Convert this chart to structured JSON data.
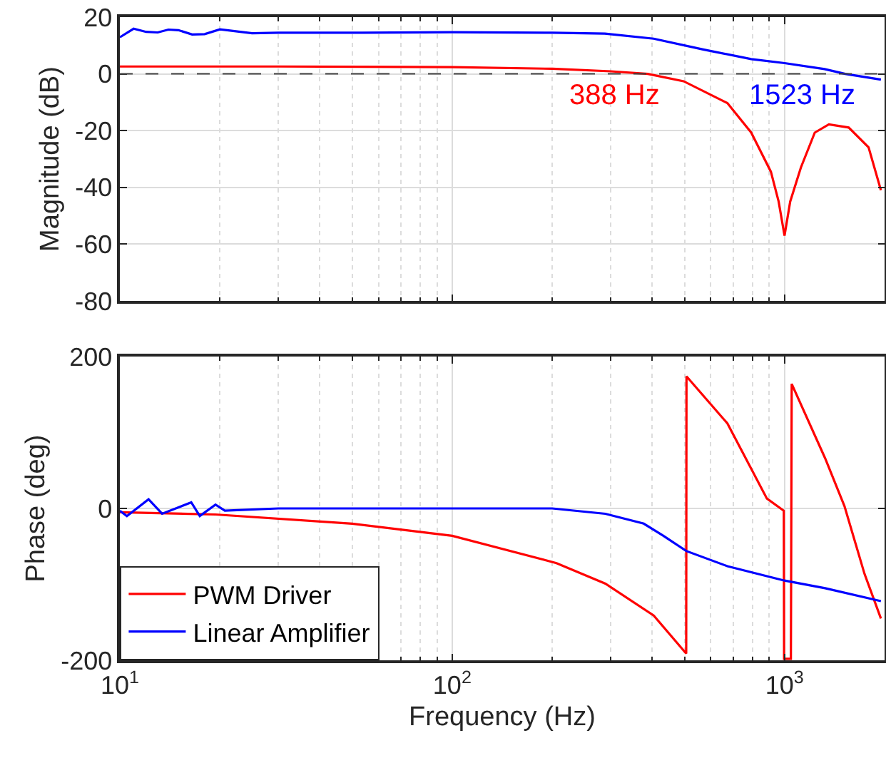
{
  "chart_data": [
    {
      "type": "line",
      "ylabel": "Magnitude (dB)",
      "xlim": [
        10,
        2000
      ],
      "ylim": [
        -80,
        20
      ],
      "log": "x",
      "grid": true,
      "legend": false,
      "tick_labels": "y",
      "line_style": "solid",
      "marker": "none",
      "xticks": [
        {
          "value": 10,
          "label": null
        },
        {
          "value": 100,
          "label": null
        },
        {
          "value": 1000,
          "label": null
        }
      ],
      "yticks": [
        -80,
        -60,
        -40,
        -20,
        0,
        20
      ],
      "ref_lines": [
        {
          "axis": "y",
          "value": 0,
          "label": null,
          "color": "#404040",
          "line_style": "dashed"
        }
      ],
      "annotations": [
        {
          "text": "388 Hz",
          "x": 388,
          "y": 0
        },
        {
          "text": "1523 Hz",
          "x": 1523,
          "y": 0
        }
      ],
      "series": [
        {
          "color": "#ff0000",
          "x": [
            10,
            30,
            100,
            200,
            300,
            388,
            497,
            673,
            794,
            910,
            960,
            1000,
            1040,
            1120,
            1233,
            1360,
            1560,
            1790,
            1950
          ],
          "values": [
            2.6,
            2.6,
            2.4,
            1.8,
            0.9,
            0,
            -2.6,
            -10.3,
            -20.7,
            -34.5,
            -45,
            -57,
            -45,
            -33,
            -20.7,
            -17.8,
            -18.9,
            -25.9,
            -41
          ]
        },
        {
          "color": "#0000ff",
          "x": [
            10,
            11,
            12,
            13,
            14,
            15,
            16.5,
            18,
            20,
            25,
            30,
            50,
            100,
            200,
            288,
            404,
            569,
            794,
            1000,
            1320,
            1523,
            1950
          ],
          "values": [
            12.9,
            15.9,
            14.8,
            14.6,
            15.6,
            15.4,
            13.9,
            14,
            15.7,
            14.3,
            14.5,
            14.5,
            14.7,
            14.5,
            14.2,
            12.4,
            8.6,
            5.2,
            3.8,
            1.7,
            0,
            -2
          ]
        }
      ]
    },
    {
      "type": "line",
      "ylabel": "Phase (deg)",
      "xlabel": "Frequency (Hz)",
      "xlim": [
        10,
        2000
      ],
      "ylim": [
        -200,
        200
      ],
      "log": "x",
      "grid": true,
      "legend": "bottom left",
      "line_style": "solid",
      "marker": "none",
      "xticks": [
        {
          "value": 10,
          "label": "10$^{1}$"
        },
        {
          "value": 100,
          "label": "10$^{2}$"
        },
        {
          "value": 1000,
          "label": "10$^{3}$"
        }
      ],
      "yticks": [
        -200,
        0,
        200
      ],
      "series": [
        {
          "name": "PWM Driver",
          "color": "#ff0000",
          "x": [
            10,
            19.4,
            50,
            100,
            206,
            289,
            404,
            506,
            507,
            673,
            885,
            995,
            997,
            1045,
            1051,
            1325,
            1515,
            1740,
            1950
          ],
          "values": [
            -5,
            -8,
            -20,
            -36,
            -72,
            -99,
            -141,
            -191,
            174,
            112,
            13,
            -3,
            -198,
            -198,
            164,
            66,
            3,
            -86,
            -145
          ]
        },
        {
          "name": "Linear Amplifier",
          "color": "#0000ff",
          "x": [
            10,
            10.5,
            12.2,
            13.4,
            16.4,
            17.4,
            19.4,
            20.7,
            30,
            50,
            100,
            200,
            289,
            377,
            432,
            506,
            673,
            1000,
            1325,
            1950
          ],
          "values": [
            -3,
            -10,
            12,
            -7,
            8,
            -10,
            5,
            -3,
            0,
            0,
            0,
            0,
            -7,
            -20,
            -36,
            -56,
            -76,
            -95,
            -105,
            -122
          ]
        }
      ]
    }
  ]
}
